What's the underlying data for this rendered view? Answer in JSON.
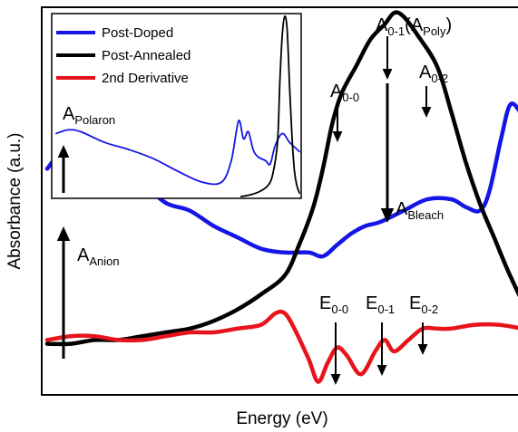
{
  "chart_data": {
    "type": "line",
    "xlabel": "Energy (eV)",
    "ylabel": "Absorbance (a.u.)",
    "ticks": "none",
    "legend": {
      "placement": "top-left (inset)",
      "entries": [
        {
          "label": "Post-Doped",
          "color": "#1515e6"
        },
        {
          "label": "Post-Annealed",
          "color": "#000000"
        },
        {
          "label": "2nd Derivative",
          "color": "#e8141b"
        }
      ]
    },
    "annotations": {
      "a_polaron": {
        "main": "A",
        "sub": "Polaron"
      },
      "a_anion": {
        "main": "A",
        "sub": "Anion"
      },
      "a_00": {
        "main": "A",
        "sub": "0-0"
      },
      "a_01": {
        "main": "A",
        "sub": "0-1",
        "paren_main": "A",
        "paren_sub": "Poly"
      },
      "a_02": {
        "main": "A",
        "sub": "0-2"
      },
      "a_bleach": {
        "main": "A",
        "sub": "Bleach"
      },
      "e_00": {
        "main": "E",
        "sub": "0-0"
      },
      "e_01": {
        "main": "E",
        "sub": "0-1"
      },
      "e_02": {
        "main": "E",
        "sub": "0-2"
      }
    },
    "series": [
      {
        "name": "Post-Doped",
        "color": "#1515e6",
        "x": [
          0.0,
          0.03,
          0.06,
          0.1,
          0.15,
          0.2,
          0.25,
          0.3,
          0.35,
          0.4,
          0.45,
          0.5,
          0.55,
          0.58,
          0.61,
          0.64,
          0.67,
          0.7,
          0.75,
          0.8,
          0.85,
          0.88,
          0.91,
          0.93,
          0.955,
          0.975,
          1.0
        ],
        "y": [
          0.58,
          0.62,
          0.59,
          0.55,
          0.56,
          0.54,
          0.49,
          0.47,
          0.43,
          0.4,
          0.37,
          0.36,
          0.36,
          0.35,
          0.38,
          0.41,
          0.43,
          0.44,
          0.47,
          0.5,
          0.5,
          0.48,
          0.47,
          0.52,
          0.66,
          0.75,
          0.72
        ]
      },
      {
        "name": "Post-Annealed",
        "color": "#000000",
        "x": [
          0.0,
          0.05,
          0.1,
          0.15,
          0.2,
          0.25,
          0.3,
          0.35,
          0.4,
          0.45,
          0.5,
          0.53,
          0.56,
          0.58,
          0.6,
          0.62,
          0.65,
          0.68,
          0.71,
          0.73,
          0.75,
          0.78,
          0.82,
          0.85,
          0.88,
          0.91,
          0.94,
          0.97,
          1.0
        ],
        "y": [
          0.12,
          0.12,
          0.13,
          0.13,
          0.14,
          0.15,
          0.16,
          0.18,
          0.21,
          0.25,
          0.3,
          0.38,
          0.48,
          0.58,
          0.7,
          0.78,
          0.85,
          0.92,
          0.96,
          0.99,
          0.98,
          0.93,
          0.85,
          0.73,
          0.6,
          0.49,
          0.4,
          0.31,
          0.23
        ]
      },
      {
        "name": "2nd Derivative",
        "color": "#e8141b",
        "x": [
          0.0,
          0.05,
          0.1,
          0.15,
          0.2,
          0.25,
          0.3,
          0.35,
          0.4,
          0.45,
          0.48,
          0.5,
          0.52,
          0.55,
          0.57,
          0.59,
          0.61,
          0.63,
          0.66,
          0.69,
          0.71,
          0.73,
          0.76,
          0.79,
          0.82,
          0.85,
          0.9,
          0.95,
          1.0
        ],
        "y": [
          0.13,
          0.14,
          0.14,
          0.13,
          0.13,
          0.14,
          0.15,
          0.15,
          0.16,
          0.17,
          0.2,
          0.2,
          0.16,
          0.08,
          0.02,
          0.07,
          0.11,
          0.09,
          0.04,
          0.1,
          0.13,
          0.1,
          0.13,
          0.16,
          0.16,
          0.16,
          0.17,
          0.17,
          0.16
        ]
      }
    ],
    "inset": {
      "series": [
        {
          "name": "Post-Doped",
          "color": "#1515e6",
          "x": [
            0.0,
            0.05,
            0.1,
            0.2,
            0.3,
            0.4,
            0.5,
            0.6,
            0.68,
            0.72,
            0.75,
            0.77,
            0.79,
            0.81,
            0.83,
            0.86,
            0.88,
            0.9,
            0.93,
            0.96,
            1.0
          ],
          "y": [
            0.35,
            0.37,
            0.36,
            0.3,
            0.26,
            0.21,
            0.14,
            0.08,
            0.08,
            0.2,
            0.42,
            0.32,
            0.36,
            0.26,
            0.22,
            0.2,
            0.18,
            0.28,
            0.35,
            0.3,
            0.25
          ]
        },
        {
          "name": "Post-Annealed",
          "color": "#000000",
          "x": [
            0.76,
            0.8,
            0.84,
            0.87,
            0.89,
            0.91,
            0.92,
            0.93,
            0.94,
            0.95,
            0.96,
            0.97,
            0.98,
            0.99,
            1.0
          ],
          "y": [
            0.0,
            0.01,
            0.03,
            0.06,
            0.12,
            0.3,
            0.65,
            0.9,
            1.0,
            0.92,
            0.6,
            0.32,
            0.14,
            0.06,
            0.02
          ]
        }
      ]
    }
  }
}
